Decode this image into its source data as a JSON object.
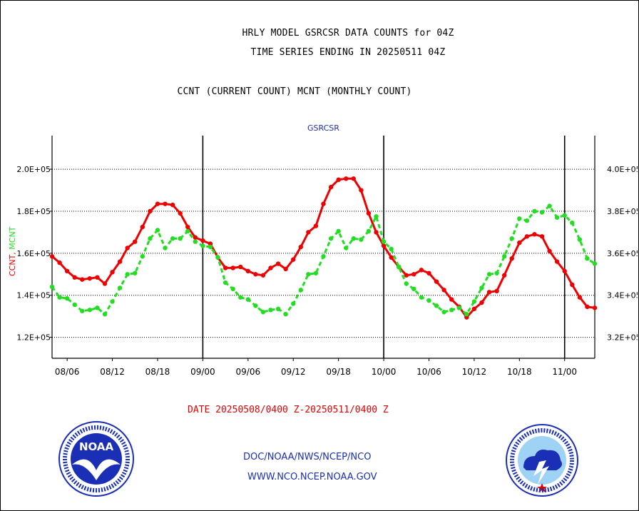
{
  "header": {
    "title_line1": "HRLY MODEL GSRCSR DATA COUNTS for 04Z",
    "title_line2": "TIME SERIES ENDING IN 20250511 04Z",
    "title_line3": "CCNT (CURRENT COUNT) MCNT (MONTHLY COUNT)"
  },
  "footer": {
    "date_range": "DATE 20250508/0400 Z-20250511/0400 Z",
    "org_line1": "DOC/NOAA/NWS/NCEP/NCO",
    "org_line2": "WWW.NCO.NCEP.NOAA.GOV"
  },
  "logos": {
    "left": {
      "icon": "noaa-logo",
      "text": "NOAA"
    },
    "right": {
      "icon": "national-weather-service-logo"
    }
  },
  "colors": {
    "ccnt": "#ee0000",
    "mcnt": "#22dd22",
    "panel_label": "#1a2fb5",
    "footer_text": "#1a2fb5",
    "date_text": "#e00000"
  },
  "chart_data": {
    "type": "line",
    "panel_label": "GSRCSR",
    "xlabel": "",
    "ylabel_left": "CCNT",
    "ylabel_right": "MCNT",
    "x_tick_labels": [
      "08/06",
      "08/12",
      "08/18",
      "09/00",
      "09/06",
      "09/12",
      "09/18",
      "10/00",
      "10/06",
      "10/12",
      "10/18",
      "11/00"
    ],
    "x_tick_hours": [
      6,
      12,
      18,
      24,
      30,
      36,
      42,
      48,
      54,
      60,
      66,
      72
    ],
    "day_boundaries_hours": [
      24,
      48,
      72
    ],
    "x_range_hours": [
      4,
      76
    ],
    "y_left_ticks": [
      "1.2E+05",
      "1.4E+05",
      "1.6E+05",
      "1.8E+05",
      "2.0E+05"
    ],
    "y_left_tick_values": [
      120000,
      140000,
      160000,
      180000,
      200000
    ],
    "y_left_range": [
      110000,
      216000
    ],
    "y_right_ticks": [
      "3.2E+05",
      "3.4E+05",
      "3.6E+05",
      "3.8E+05",
      "4.0E+05"
    ],
    "y_right_tick_values": [
      320000,
      340000,
      360000,
      380000,
      400000
    ],
    "y_right_range": [
      310000,
      416000
    ],
    "grid": true,
    "series": [
      {
        "name": "CCNT",
        "axis": "left",
        "x_hours": [
          4,
          5,
          6,
          7,
          8,
          9,
          10,
          11,
          12,
          13,
          14,
          15,
          16,
          17,
          18,
          19,
          20,
          21,
          22,
          23,
          24,
          25,
          26,
          27,
          28,
          29,
          30,
          31,
          32,
          33,
          34,
          35,
          36,
          37,
          38,
          39,
          40,
          41,
          42,
          43,
          44,
          45,
          46,
          47,
          48,
          49,
          50,
          51,
          52,
          53,
          54,
          55,
          56,
          57,
          58,
          59,
          60,
          61,
          62,
          63,
          64,
          65,
          66,
          67,
          68,
          69,
          70,
          71,
          72,
          73,
          74,
          75,
          76
        ],
        "values": [
          158500,
          155500,
          151500,
          148500,
          147500,
          148000,
          148500,
          145500,
          151000,
          156000,
          162500,
          165500,
          172500,
          180000,
          183500,
          183500,
          183000,
          179000,
          172500,
          167500,
          166000,
          164500,
          158000,
          153000,
          153000,
          153500,
          151500,
          150000,
          149500,
          153000,
          155000,
          152500,
          157000,
          163000,
          170000,
          173000,
          183500,
          191500,
          195000,
          195500,
          195500,
          190000,
          179000,
          170000,
          163500,
          158000,
          153500,
          149500,
          150000,
          152000,
          150500,
          146500,
          142500,
          138000,
          134500,
          129500,
          133500,
          136500,
          141500,
          142000,
          149500,
          157500,
          165000,
          168000,
          169000,
          168000,
          161000,
          156000,
          151500,
          145000,
          139000,
          134500,
          134000
        ]
      },
      {
        "name": "MCNT",
        "axis": "right",
        "x_hours": [
          4,
          5,
          6,
          7,
          8,
          9,
          10,
          11,
          12,
          13,
          14,
          15,
          16,
          17,
          18,
          19,
          20,
          21,
          22,
          23,
          24,
          25,
          26,
          27,
          28,
          29,
          30,
          31,
          32,
          33,
          34,
          35,
          36,
          37,
          38,
          39,
          40,
          41,
          42,
          43,
          44,
          45,
          46,
          47,
          48,
          49,
          50,
          51,
          52,
          53,
          54,
          55,
          56,
          57,
          58,
          59,
          60,
          61,
          62,
          63,
          64,
          65,
          66,
          67,
          68,
          69,
          70,
          71,
          72,
          73,
          74,
          75,
          76
        ],
        "values": [
          344000,
          339000,
          338500,
          335500,
          332500,
          333000,
          334000,
          331000,
          337000,
          343500,
          350000,
          350500,
          358500,
          367000,
          371000,
          362500,
          367000,
          367000,
          370500,
          365500,
          363500,
          363000,
          358000,
          346000,
          343000,
          339000,
          338000,
          335000,
          332000,
          333000,
          333500,
          331000,
          336000,
          342500,
          350000,
          350500,
          358500,
          367000,
          370500,
          362500,
          367000,
          366500,
          370500,
          377500,
          365500,
          362000,
          353500,
          345500,
          343000,
          339000,
          337500,
          335000,
          332000,
          333000,
          334000,
          331000,
          337000,
          343500,
          350000,
          350500,
          358500,
          367000,
          376500,
          375500,
          380000,
          379500,
          382500,
          377000,
          378000,
          374500,
          366500,
          357500,
          355000
        ]
      }
    ]
  }
}
